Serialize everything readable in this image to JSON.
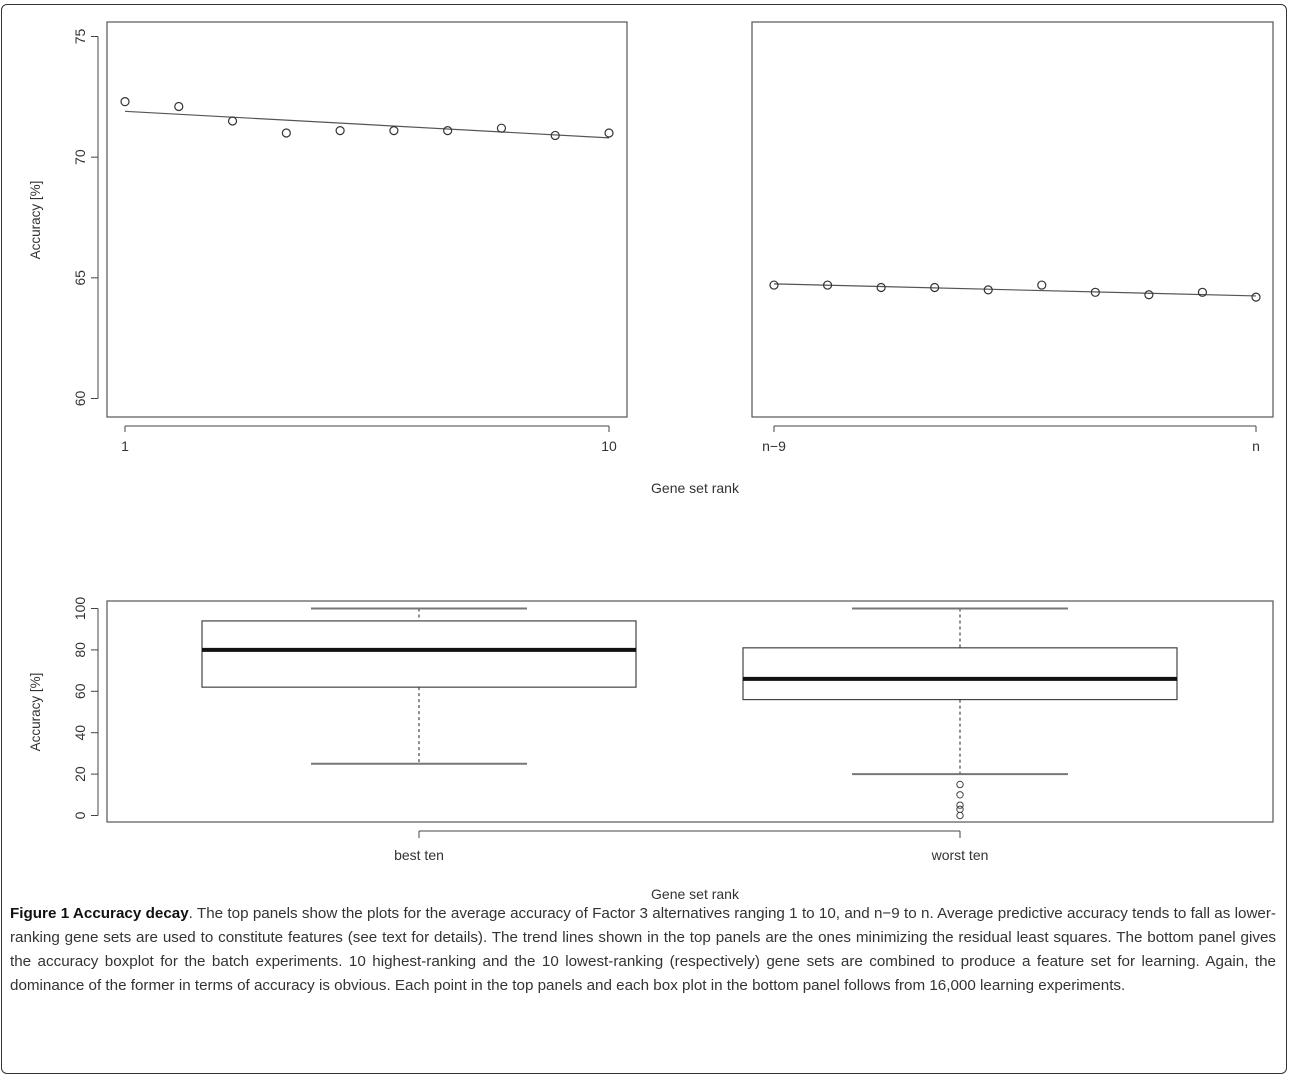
{
  "chart_data": [
    {
      "type": "scatter",
      "title": "",
      "ylabel": "Accuracy [%]",
      "xlabel": "Gene set rank",
      "x_tick_labels": [
        "1",
        "10"
      ],
      "x": [
        1,
        2,
        3,
        4,
        5,
        6,
        7,
        8,
        9,
        10
      ],
      "y": [
        72.3,
        72.1,
        71.5,
        71.0,
        71.1,
        71.1,
        71.1,
        71.2,
        70.9,
        71.0
      ],
      "trend": {
        "start": 71.9,
        "end": 70.8
      },
      "ylim": [
        59.5,
        75.5
      ],
      "yticks": [
        60,
        65,
        70,
        75
      ],
      "grid": false
    },
    {
      "type": "scatter",
      "title": "",
      "x_tick_labels": [
        "n−9",
        "n"
      ],
      "x": [
        1,
        2,
        3,
        4,
        5,
        6,
        7,
        8,
        9,
        10
      ],
      "y": [
        64.7,
        64.7,
        64.6,
        64.6,
        64.5,
        64.7,
        64.4,
        64.3,
        64.4,
        64.2
      ],
      "trend": {
        "start": 64.75,
        "end": 64.25
      },
      "ylim": [
        59.5,
        75.5
      ],
      "grid": false
    },
    {
      "type": "box",
      "title": "",
      "ylabel": "Accuracy [%]",
      "xlabel": "Gene set rank",
      "categories": [
        "best ten",
        "worst ten"
      ],
      "boxes": [
        {
          "whisker_low": 25,
          "q1": 62,
          "median": 80,
          "q3": 94,
          "whisker_high": 100,
          "outliers": []
        },
        {
          "whisker_low": 20,
          "q1": 56,
          "median": 66,
          "q3": 81,
          "whisker_high": 100,
          "outliers": [
            0,
            3,
            5,
            10,
            15
          ]
        }
      ],
      "ylim": [
        -4,
        104
      ],
      "yticks": [
        0,
        20,
        40,
        60,
        80,
        100
      ],
      "grid": false
    }
  ],
  "caption": {
    "title": "Figure 1 Accuracy decay",
    "text": ". The top panels show the plots for the average accuracy of Factor 3 alternatives ranging 1 to 10, and n−9 to n. Average predictive accuracy tends to fall as lower-ranking gene sets are used to constitute features (see text for details). The trend lines shown in the top panels are the ones minimizing the residual least squares. The bottom panel gives the accuracy boxplot for the batch experiments. 10 highest-ranking and the 10 lowest-ranking (respectively) gene sets are combined to produce a feature set for learning. Again, the dominance of the former in terms of accuracy is obvious. Each point in the top panels and each box plot in the bottom panel follows from 16,000 learning experiments."
  }
}
